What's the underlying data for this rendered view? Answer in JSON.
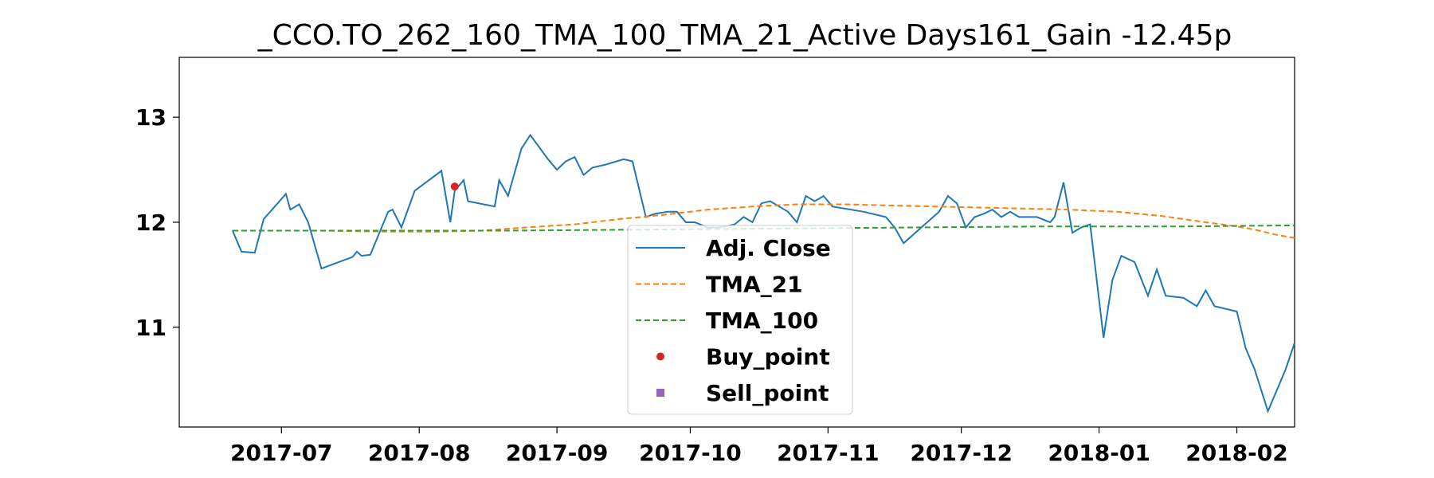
{
  "chart_data": {
    "type": "line",
    "title": "_CCO.TO_262_160_TMA_100_TMA_21_Active Days161_Gain -12.45p",
    "xlabel": "",
    "ylabel": "",
    "x_ticks": [
      "2017-07",
      "2017-08",
      "2017-09",
      "2017-10",
      "2017-11",
      "2017-12",
      "2018-01",
      "2018-02"
    ],
    "y_ticks": [
      11,
      12,
      13
    ],
    "xlim": [
      "2017-06-08",
      "2018-02-14"
    ],
    "ylim": [
      10.05,
      13.57
    ],
    "grid": false,
    "legend_position": "bottom-center",
    "series": [
      {
        "name": "Adj. Close",
        "color": "#1f77b4",
        "style": "solid",
        "points": [
          [
            "2017-06-20",
            11.92
          ],
          [
            "2017-06-22",
            11.72
          ],
          [
            "2017-06-25",
            11.71
          ],
          [
            "2017-06-27",
            12.03
          ],
          [
            "2017-07-02",
            12.27
          ],
          [
            "2017-07-03",
            12.12
          ],
          [
            "2017-07-05",
            12.17
          ],
          [
            "2017-07-07",
            12.0
          ],
          [
            "2017-07-10",
            11.56
          ],
          [
            "2017-07-17",
            11.67
          ],
          [
            "2017-07-18",
            11.72
          ],
          [
            "2017-07-19",
            11.68
          ],
          [
            "2017-07-21",
            11.69
          ],
          [
            "2017-07-25",
            12.1
          ],
          [
            "2017-07-26",
            12.12
          ],
          [
            "2017-07-28",
            11.95
          ],
          [
            "2017-07-31",
            12.3
          ],
          [
            "2017-08-06",
            12.49
          ],
          [
            "2017-08-08",
            12.0
          ],
          [
            "2017-08-09",
            12.3
          ],
          [
            "2017-08-11",
            12.4
          ],
          [
            "2017-08-12",
            12.2
          ],
          [
            "2017-08-18",
            12.15
          ],
          [
            "2017-08-19",
            12.4
          ],
          [
            "2017-08-21",
            12.25
          ],
          [
            "2017-08-24",
            12.7
          ],
          [
            "2017-08-26",
            12.83
          ],
          [
            "2017-08-30",
            12.6
          ],
          [
            "2017-09-01",
            12.5
          ],
          [
            "2017-09-03",
            12.58
          ],
          [
            "2017-09-05",
            12.62
          ],
          [
            "2017-09-07",
            12.45
          ],
          [
            "2017-09-09",
            12.52
          ],
          [
            "2017-09-12",
            12.55
          ],
          [
            "2017-09-16",
            12.6
          ],
          [
            "2017-09-18",
            12.58
          ],
          [
            "2017-09-21",
            12.05
          ],
          [
            "2017-09-23",
            12.08
          ],
          [
            "2017-09-26",
            12.1
          ],
          [
            "2017-09-28",
            12.1
          ],
          [
            "2017-09-30",
            12.0
          ],
          [
            "2017-10-02",
            12.0
          ],
          [
            "2017-10-05",
            11.95
          ],
          [
            "2017-10-07",
            11.95
          ],
          [
            "2017-10-09",
            11.96
          ],
          [
            "2017-10-11",
            11.98
          ],
          [
            "2017-10-13",
            12.05
          ],
          [
            "2017-10-15",
            12.0
          ],
          [
            "2017-10-17",
            12.18
          ],
          [
            "2017-10-19",
            12.2
          ],
          [
            "2017-10-21",
            12.15
          ],
          [
            "2017-10-23",
            12.1
          ],
          [
            "2017-10-25",
            12.0
          ],
          [
            "2017-10-27",
            12.25
          ],
          [
            "2017-10-29",
            12.2
          ],
          [
            "2017-10-31",
            12.25
          ],
          [
            "2017-11-02",
            12.15
          ],
          [
            "2017-11-09",
            12.1
          ],
          [
            "2017-11-14",
            12.05
          ],
          [
            "2017-11-16",
            11.95
          ],
          [
            "2017-11-18",
            11.8
          ],
          [
            "2017-11-26",
            12.1
          ],
          [
            "2017-11-28",
            12.25
          ],
          [
            "2017-11-30",
            12.18
          ],
          [
            "2017-12-02",
            11.95
          ],
          [
            "2017-12-04",
            12.05
          ],
          [
            "2017-12-06",
            12.08
          ],
          [
            "2017-12-08",
            12.12
          ],
          [
            "2017-12-10",
            12.05
          ],
          [
            "2017-12-12",
            12.1
          ],
          [
            "2017-12-14",
            12.05
          ],
          [
            "2017-12-16",
            12.05
          ],
          [
            "2017-12-18",
            12.05
          ],
          [
            "2017-12-21",
            12.0
          ],
          [
            "2017-12-22",
            12.05
          ],
          [
            "2017-12-24",
            12.38
          ],
          [
            "2017-12-26",
            11.9
          ],
          [
            "2017-12-28",
            11.95
          ],
          [
            "2017-12-30",
            11.98
          ],
          [
            "2018-01-02",
            10.9
          ],
          [
            "2018-01-04",
            11.45
          ],
          [
            "2018-01-06",
            11.68
          ],
          [
            "2018-01-09",
            11.62
          ],
          [
            "2018-01-12",
            11.3
          ],
          [
            "2018-01-14",
            11.55
          ],
          [
            "2018-01-16",
            11.3
          ],
          [
            "2018-01-20",
            11.28
          ],
          [
            "2018-01-23",
            11.2
          ],
          [
            "2018-01-25",
            11.35
          ],
          [
            "2018-01-27",
            11.2
          ],
          [
            "2018-02-01",
            11.15
          ],
          [
            "2018-02-03",
            10.8
          ],
          [
            "2018-02-05",
            10.6
          ],
          [
            "2018-02-08",
            10.2
          ],
          [
            "2018-02-10",
            10.4
          ],
          [
            "2018-02-12",
            10.6
          ],
          [
            "2018-02-14",
            10.85
          ]
        ]
      },
      {
        "name": "TMA_21",
        "color": "#ff7f0e",
        "style": "dashed",
        "points": [
          [
            "2017-06-20",
            11.92
          ],
          [
            "2017-07-10",
            11.92
          ],
          [
            "2017-07-25",
            11.91
          ],
          [
            "2017-08-05",
            11.91
          ],
          [
            "2017-08-15",
            11.92
          ],
          [
            "2017-08-25",
            11.95
          ],
          [
            "2017-09-05",
            11.98
          ],
          [
            "2017-09-15",
            12.03
          ],
          [
            "2017-09-25",
            12.07
          ],
          [
            "2017-10-05",
            12.12
          ],
          [
            "2017-10-15",
            12.15
          ],
          [
            "2017-10-25",
            12.17
          ],
          [
            "2017-11-05",
            12.17
          ],
          [
            "2017-11-15",
            12.16
          ],
          [
            "2017-11-25",
            12.15
          ],
          [
            "2017-12-05",
            12.14
          ],
          [
            "2017-12-15",
            12.13
          ],
          [
            "2017-12-25",
            12.12
          ],
          [
            "2018-01-05",
            12.1
          ],
          [
            "2018-01-15",
            12.06
          ],
          [
            "2018-01-25",
            12.0
          ],
          [
            "2018-02-01",
            11.96
          ],
          [
            "2018-02-05",
            11.93
          ],
          [
            "2018-02-10",
            11.88
          ],
          [
            "2018-02-14",
            11.85
          ]
        ]
      },
      {
        "name": "TMA_100",
        "color": "#2ca02c",
        "style": "dashed",
        "points": [
          [
            "2017-06-20",
            11.92
          ],
          [
            "2017-07-20",
            11.92
          ],
          [
            "2017-08-20",
            11.92
          ],
          [
            "2017-09-20",
            11.93
          ],
          [
            "2017-10-20",
            11.94
          ],
          [
            "2017-11-20",
            11.95
          ],
          [
            "2017-12-20",
            11.96
          ],
          [
            "2018-01-20",
            11.96
          ],
          [
            "2018-02-14",
            11.97
          ]
        ]
      }
    ],
    "buy_points": [
      [
        "2017-08-09",
        12.34
      ]
    ],
    "sell_points": [],
    "legend": [
      {
        "label": "Adj. Close",
        "kind": "line",
        "color": "#1f77b4",
        "dash": false
      },
      {
        "label": "TMA_21",
        "kind": "line",
        "color": "#ff7f0e",
        "dash": true
      },
      {
        "label": "TMA_100",
        "kind": "line",
        "color": "#2ca02c",
        "dash": true
      },
      {
        "label": "Buy_point",
        "kind": "dot",
        "color": "#d62728"
      },
      {
        "label": "Sell_point",
        "kind": "square",
        "color": "#9467bd"
      }
    ]
  }
}
